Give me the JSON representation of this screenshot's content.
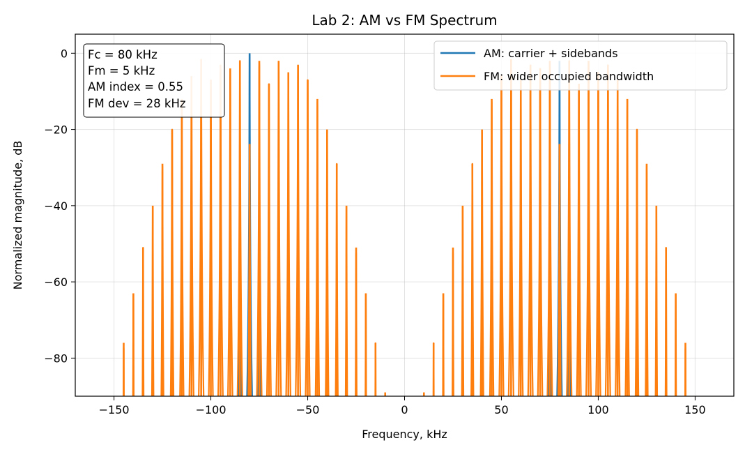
{
  "chart_data": {
    "type": "line",
    "title": "Lab 2: AM vs FM Spectrum",
    "xlabel": "Frequency, kHz",
    "ylabel": "Normalized magnitude, dB",
    "xlim": [
      -170,
      170
    ],
    "ylim": [
      -90,
      5
    ],
    "xticks": [
      -150,
      -100,
      -50,
      0,
      50,
      100,
      150
    ],
    "xtick_labels": [
      "−150",
      "−100",
      "−50",
      "0",
      "50",
      "100",
      "150"
    ],
    "yticks": [
      0,
      -20,
      -40,
      -60,
      -80
    ],
    "ytick_labels": [
      "0",
      "−20",
      "−40",
      "−60",
      "−80"
    ],
    "grid": true,
    "legend_position": "top-right",
    "annotation_lines": [
      "Fc = 80 kHz",
      "Fm = 5 kHz",
      "AM index = 0.55",
      "FM dev = 28 kHz"
    ],
    "series": [
      {
        "name": "AM: carrier + sidebands",
        "color": "#1f77b4",
        "peaks": [
          {
            "x": -85,
            "y": -23.8
          },
          {
            "x": -80,
            "y": 0
          },
          {
            "x": -75,
            "y": -23.8
          },
          {
            "x": 75,
            "y": -23.8
          },
          {
            "x": 80,
            "y": -2
          },
          {
            "x": 85,
            "y": -23.8
          }
        ]
      },
      {
        "name": "FM: wider occupied bandwidth",
        "color": "#ff7f0e",
        "peaks": [
          {
            "x": -145,
            "y": -76
          },
          {
            "x": -140,
            "y": -63
          },
          {
            "x": -135,
            "y": -51
          },
          {
            "x": -130,
            "y": -40
          },
          {
            "x": -125,
            "y": -29
          },
          {
            "x": -120,
            "y": -20
          },
          {
            "x": -115,
            "y": -12
          },
          {
            "x": -110,
            "y": -6
          },
          {
            "x": -105,
            "y": -1.5
          },
          {
            "x": -100,
            "y": -7
          },
          {
            "x": -95,
            "y": -3
          },
          {
            "x": -90,
            "y": -4
          },
          {
            "x": -85,
            "y": -2
          },
          {
            "x": -80,
            "y": -23.8
          },
          {
            "x": -75,
            "y": -2
          },
          {
            "x": -70,
            "y": -8
          },
          {
            "x": -65,
            "y": -2
          },
          {
            "x": -60,
            "y": -5
          },
          {
            "x": -55,
            "y": -3
          },
          {
            "x": -50,
            "y": -7
          },
          {
            "x": -45,
            "y": -12
          },
          {
            "x": -40,
            "y": -20
          },
          {
            "x": -35,
            "y": -29
          },
          {
            "x": -30,
            "y": -40
          },
          {
            "x": -25,
            "y": -51
          },
          {
            "x": -20,
            "y": -63
          },
          {
            "x": -15,
            "y": -76
          },
          {
            "x": -10,
            "y": -89
          },
          {
            "x": 10,
            "y": -89
          },
          {
            "x": 15,
            "y": -76
          },
          {
            "x": 20,
            "y": -63
          },
          {
            "x": 25,
            "y": -51
          },
          {
            "x": 30,
            "y": -40
          },
          {
            "x": 35,
            "y": -29
          },
          {
            "x": 40,
            "y": -20
          },
          {
            "x": 45,
            "y": -12
          },
          {
            "x": 50,
            "y": -6
          },
          {
            "x": 55,
            "y": -1.5
          },
          {
            "x": 60,
            "y": -7
          },
          {
            "x": 65,
            "y": -3
          },
          {
            "x": 70,
            "y": -4
          },
          {
            "x": 75,
            "y": -2
          },
          {
            "x": 80,
            "y": -23.8
          },
          {
            "x": 85,
            "y": -2
          },
          {
            "x": 90,
            "y": -8
          },
          {
            "x": 95,
            "y": -2
          },
          {
            "x": 100,
            "y": -5
          },
          {
            "x": 105,
            "y": -3
          },
          {
            "x": 110,
            "y": -7
          },
          {
            "x": 115,
            "y": -12
          },
          {
            "x": 120,
            "y": -20
          },
          {
            "x": 125,
            "y": -29
          },
          {
            "x": 130,
            "y": -40
          },
          {
            "x": 135,
            "y": -51
          },
          {
            "x": 140,
            "y": -63
          },
          {
            "x": 145,
            "y": -76
          }
        ]
      }
    ]
  }
}
